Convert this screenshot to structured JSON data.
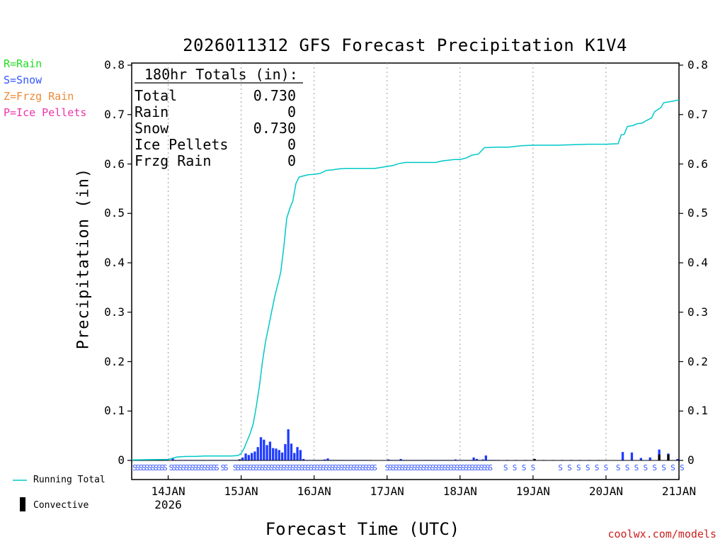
{
  "chart_data": {
    "type": "bar+line",
    "title": "2026011312 GFS Forecast Precipitation K1V4",
    "xlabel": "Forecast Time (UTC)",
    "ylabel": "Precipitation (in)",
    "ylim": [
      0,
      0.8
    ],
    "yticks": [
      "0",
      "0.1",
      "0.2",
      "0.3",
      "0.4",
      "0.5",
      "0.6",
      "0.7",
      "0.8"
    ],
    "x_range_hours": [
      0,
      180
    ],
    "xticks": [
      {
        "hour": 12,
        "label": "14JAN",
        "sub": "2026"
      },
      {
        "hour": 36,
        "label": "15JAN",
        "sub": ""
      },
      {
        "hour": 60,
        "label": "16JAN",
        "sub": ""
      },
      {
        "hour": 84,
        "label": "17JAN",
        "sub": ""
      },
      {
        "hour": 108,
        "label": "18JAN",
        "sub": ""
      },
      {
        "hour": 132,
        "label": "19JAN",
        "sub": ""
      },
      {
        "hour": 156,
        "label": "20JAN",
        "sub": ""
      },
      {
        "hour": 180,
        "label": "21JAN",
        "sub": ""
      }
    ],
    "totals_box": {
      "heading": "180hr Totals (in):",
      "rows": [
        {
          "label": "Total",
          "value": "0.730"
        },
        {
          "label": "Rain",
          "value": "0"
        },
        {
          "label": "Snow",
          "value": "0.730"
        },
        {
          "label": "Ice Pellets",
          "value": "0"
        },
        {
          "label": "Frzg Rain",
          "value": "0"
        }
      ]
    },
    "running_total": {
      "name": "Running Total",
      "color": "#00c8c8",
      "points": [
        [
          0,
          0.001
        ],
        [
          12,
          0.002
        ],
        [
          15,
          0.007
        ],
        [
          18,
          0.008
        ],
        [
          21,
          0.008
        ],
        [
          24,
          0.009
        ],
        [
          27,
          0.009
        ],
        [
          30,
          0.009
        ],
        [
          33,
          0.009
        ],
        [
          35,
          0.01
        ],
        [
          36,
          0.014
        ],
        [
          37,
          0.025
        ],
        [
          38,
          0.04
        ],
        [
          39,
          0.055
        ],
        [
          40,
          0.075
        ],
        [
          41,
          0.11
        ],
        [
          42,
          0.15
        ],
        [
          43,
          0.2
        ],
        [
          44,
          0.24
        ],
        [
          45,
          0.27
        ],
        [
          46,
          0.3
        ],
        [
          47,
          0.33
        ],
        [
          48,
          0.355
        ],
        [
          49,
          0.38
        ],
        [
          50,
          0.43
        ],
        [
          51,
          0.49
        ],
        [
          52,
          0.51
        ],
        [
          53,
          0.525
        ],
        [
          54,
          0.56
        ],
        [
          55,
          0.573
        ],
        [
          56,
          0.575
        ],
        [
          58,
          0.578
        ],
        [
          60,
          0.579
        ],
        [
          62,
          0.581
        ],
        [
          64,
          0.587
        ],
        [
          66,
          0.588
        ],
        [
          68,
          0.59
        ],
        [
          70,
          0.591
        ],
        [
          72,
          0.591
        ],
        [
          76,
          0.591
        ],
        [
          80,
          0.591
        ],
        [
          84,
          0.595
        ],
        [
          86,
          0.597
        ],
        [
          88,
          0.601
        ],
        [
          90,
          0.603
        ],
        [
          94,
          0.603
        ],
        [
          100,
          0.603
        ],
        [
          102,
          0.606
        ],
        [
          106,
          0.609
        ],
        [
          108,
          0.609
        ],
        [
          110,
          0.612
        ],
        [
          112,
          0.618
        ],
        [
          114,
          0.62
        ],
        [
          116,
          0.633
        ],
        [
          120,
          0.634
        ],
        [
          124,
          0.634
        ],
        [
          128,
          0.637
        ],
        [
          132,
          0.638
        ],
        [
          140,
          0.638
        ],
        [
          150,
          0.64
        ],
        [
          156,
          0.64
        ],
        [
          160,
          0.641
        ],
        [
          161,
          0.659
        ],
        [
          162,
          0.66
        ],
        [
          163,
          0.676
        ],
        [
          165,
          0.678
        ],
        [
          166,
          0.681
        ],
        [
          168,
          0.683
        ],
        [
          169,
          0.687
        ],
        [
          171,
          0.693
        ],
        [
          172,
          0.706
        ],
        [
          174,
          0.714
        ],
        [
          175,
          0.724
        ],
        [
          178,
          0.727
        ],
        [
          180,
          0.73
        ]
      ]
    },
    "bars": {
      "name": "Snow",
      "color": "#1f3cff",
      "convective_color": "#000000",
      "bar_width_hours": 1,
      "values": [
        [
          0,
          0.001
        ],
        [
          1,
          0.001
        ],
        [
          2,
          0.001
        ],
        [
          3,
          0.001
        ],
        [
          4,
          0.001
        ],
        [
          5,
          0.001
        ],
        [
          6,
          0.001
        ],
        [
          7,
          0.001
        ],
        [
          8,
          0.001
        ],
        [
          9,
          0.001
        ],
        [
          10,
          0.001
        ],
        [
          11,
          0.001
        ],
        [
          13,
          0.004
        ],
        [
          14,
          0.001
        ],
        [
          15,
          0.001
        ],
        [
          16,
          0.001
        ],
        [
          17,
          0.001
        ],
        [
          18,
          0.001
        ],
        [
          19,
          0.001
        ],
        [
          20,
          0.001
        ],
        [
          21,
          0.001
        ],
        [
          22,
          0.001
        ],
        [
          23,
          0.001
        ],
        [
          24,
          0.001
        ],
        [
          25,
          0.001
        ],
        [
          26,
          0.001
        ],
        [
          27,
          0.001
        ],
        [
          28,
          0.001
        ],
        [
          29,
          0.001
        ],
        [
          30,
          0.001
        ],
        [
          31,
          0.001
        ],
        [
          32,
          0.001
        ],
        [
          33,
          0.001
        ],
        [
          34,
          0.001
        ],
        [
          35,
          0.002
        ],
        [
          36,
          0.006
        ],
        [
          37,
          0.014
        ],
        [
          38,
          0.011
        ],
        [
          39,
          0.015
        ],
        [
          40,
          0.018
        ],
        [
          41,
          0.027
        ],
        [
          42,
          0.047
        ],
        [
          43,
          0.042
        ],
        [
          44,
          0.031
        ],
        [
          45,
          0.038
        ],
        [
          46,
          0.025
        ],
        [
          47,
          0.024
        ],
        [
          48,
          0.021
        ],
        [
          49,
          0.016
        ],
        [
          50,
          0.033
        ],
        [
          51,
          0.063
        ],
        [
          52,
          0.034
        ],
        [
          53,
          0.015
        ],
        [
          54,
          0.027
        ],
        [
          55,
          0.021
        ],
        [
          56,
          0.003
        ],
        [
          57,
          0.001
        ],
        [
          58,
          0.001
        ],
        [
          59,
          0.001
        ],
        [
          60,
          0.001
        ],
        [
          61,
          0.001
        ],
        [
          62,
          0.001
        ],
        [
          63,
          0.002
        ],
        [
          64,
          0.004
        ],
        [
          65,
          0.001
        ],
        [
          66,
          0.001
        ],
        [
          67,
          0.001
        ],
        [
          68,
          0.001
        ],
        [
          69,
          0.001
        ],
        [
          70,
          0.001
        ],
        [
          71,
          0.001
        ],
        [
          72,
          0.001
        ],
        [
          73,
          0.001
        ],
        [
          74,
          0.001
        ],
        [
          75,
          0.001
        ],
        [
          76,
          0.001
        ],
        [
          77,
          0.001
        ],
        [
          78,
          0.001
        ],
        [
          84,
          0.002
        ],
        [
          85,
          0.001
        ],
        [
          86,
          0.001
        ],
        [
          87,
          0.001
        ],
        [
          88,
          0.003
        ],
        [
          89,
          0.001
        ],
        [
          90,
          0.001
        ],
        [
          91,
          0.001
        ],
        [
          92,
          0.001
        ],
        [
          93,
          0.001
        ],
        [
          94,
          0.001
        ],
        [
          95,
          0.001
        ],
        [
          96,
          0.001
        ],
        [
          97,
          0.001
        ],
        [
          98,
          0.001
        ],
        [
          99,
          0.001
        ],
        [
          100,
          0.001
        ],
        [
          101,
          0.001
        ],
        [
          102,
          0.001
        ],
        [
          103,
          0.001
        ],
        [
          104,
          0.001
        ],
        [
          105,
          0.001
        ],
        [
          106,
          0.002
        ],
        [
          107,
          0.001
        ],
        [
          108,
          0.001
        ],
        [
          109,
          0.001
        ],
        [
          110,
          0.001
        ],
        [
          111,
          0.001
        ],
        [
          112,
          0.006
        ],
        [
          113,
          0.003
        ],
        [
          114,
          0.001
        ],
        [
          115,
          0.002
        ],
        [
          116,
          0.01
        ],
        [
          117,
          0.001
        ],
        [
          118,
          0.001
        ],
        [
          119,
          0.001
        ],
        [
          120,
          0.001
        ],
        [
          123,
          0.001
        ],
        [
          126,
          0.001
        ],
        [
          129,
          0.001
        ],
        [
          132,
          0.003
        ],
        [
          135,
          0.001
        ],
        [
          138,
          0.001
        ],
        [
          141,
          0.001
        ],
        [
          144,
          0.001
        ],
        [
          147,
          0.001
        ],
        [
          150,
          0.001
        ],
        [
          153,
          0.001
        ],
        [
          161,
          0.017
        ],
        [
          164,
          0.016
        ],
        [
          167,
          0.005
        ],
        [
          170,
          0.006
        ],
        [
          173,
          0.022
        ],
        [
          176,
          0.014
        ],
        [
          179,
          0.003
        ]
      ],
      "convective": [
        [
          35,
          0.002
        ],
        [
          132,
          0.003
        ],
        [
          173,
          0.012
        ],
        [
          176,
          0.012
        ]
      ]
    },
    "ptype_row": [
      {
        "from": 0,
        "to": 10,
        "type": "S"
      },
      {
        "from": 12,
        "to": 27,
        "type": "S"
      },
      {
        "from": 29,
        "to": 30,
        "type": "S"
      },
      {
        "from": 33,
        "to": 79,
        "type": "S"
      },
      {
        "from": 83,
        "to": 84,
        "type": "S"
      },
      {
        "from": 85,
        "to": 117,
        "type": "S"
      },
      {
        "from": 122,
        "to": 131,
        "type": "S"
      },
      {
        "from": 140,
        "to": 155,
        "type": "S"
      },
      {
        "from": 159,
        "to": 180,
        "type": "S"
      }
    ]
  },
  "legend": {
    "rain": {
      "text": "R=Rain",
      "color": "#22dd22"
    },
    "snow": {
      "text": "S=Snow",
      "color": "#3355ff"
    },
    "frzg": {
      "text": "Z=Frzg Rain",
      "color": "#ee8833"
    },
    "ice": {
      "text": "P=Ice Pellets",
      "color": "#ee33aa"
    }
  },
  "bottom_legend": {
    "running_total": "Running Total",
    "convective": "Convective"
  },
  "credit": "coolwx.com/models"
}
